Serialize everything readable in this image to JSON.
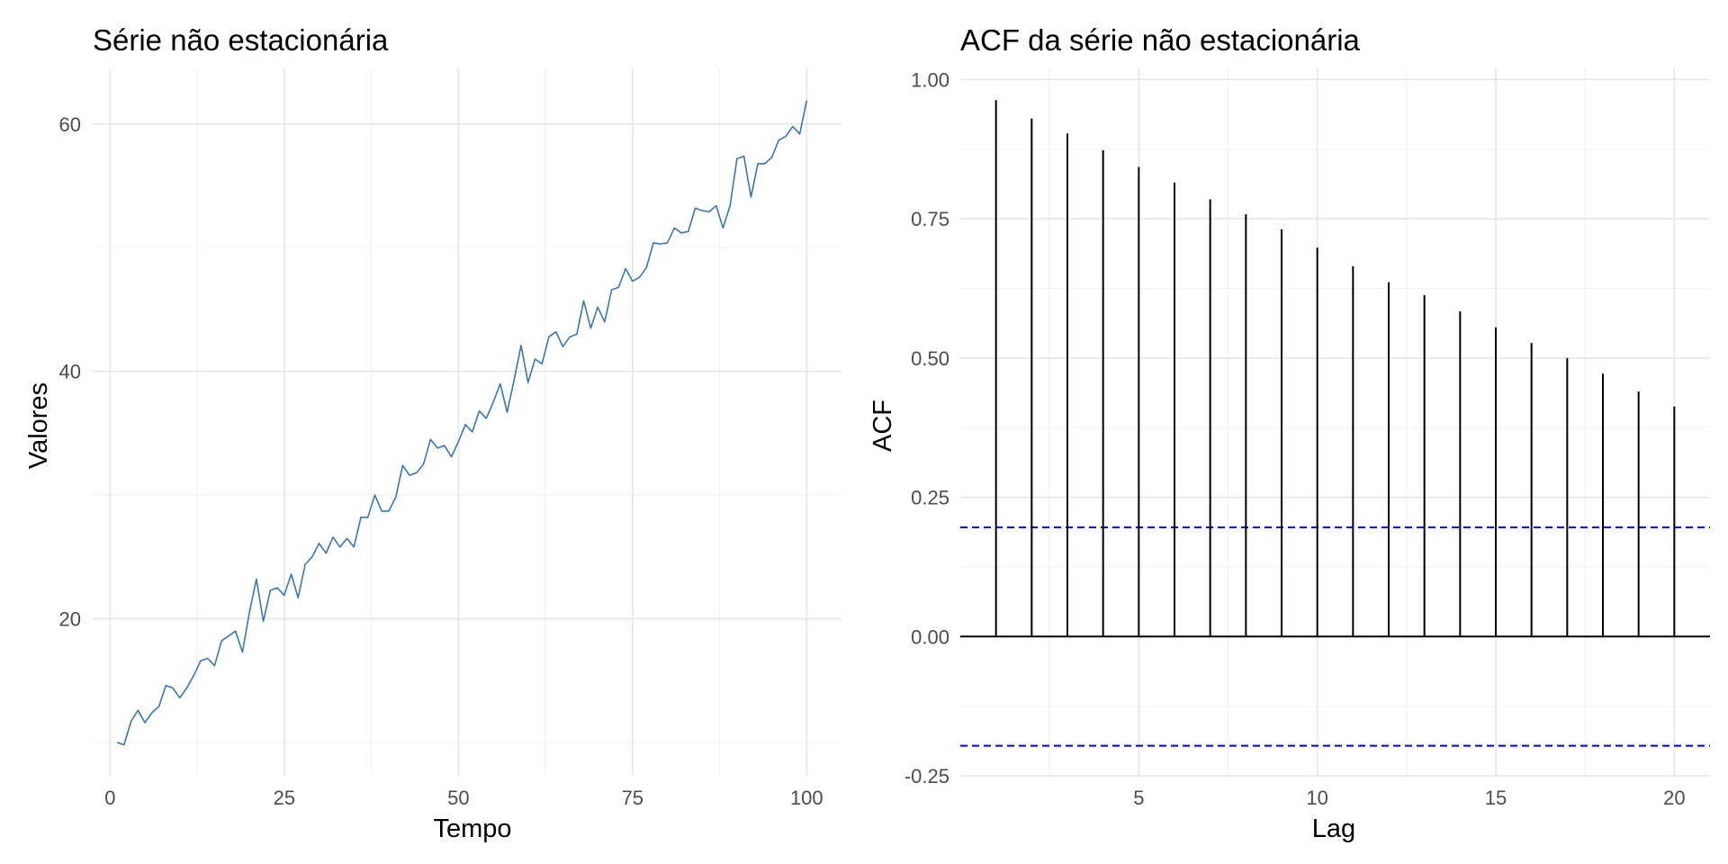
{
  "chart_data": [
    {
      "type": "line",
      "title": "Série não estacionária",
      "xlabel": "Tempo",
      "ylabel": "Valores",
      "xlim": [
        -2.5,
        105
      ],
      "ylim": [
        7.3,
        64.5
      ],
      "xticks": [
        0,
        25,
        50,
        75,
        100
      ],
      "yticks": [
        20,
        40,
        60
      ],
      "line_color": "#3a76b0",
      "grid": true,
      "x": [
        1,
        2,
        3,
        4,
        5,
        6,
        7,
        8,
        9,
        10,
        11,
        12,
        13,
        14,
        15,
        16,
        17,
        18,
        19,
        20,
        21,
        22,
        23,
        24,
        25,
        26,
        27,
        28,
        29,
        30,
        31,
        32,
        33,
        34,
        35,
        36,
        37,
        38,
        39,
        40,
        41,
        42,
        43,
        44,
        45,
        46,
        47,
        48,
        49,
        50,
        51,
        52,
        53,
        54,
        55,
        56,
        57,
        58,
        59,
        60,
        61,
        62,
        63,
        64,
        65,
        66,
        67,
        68,
        69,
        70,
        71,
        72,
        73,
        74,
        75,
        76,
        77,
        78,
        79,
        80,
        81,
        82,
        83,
        84,
        85,
        86,
        87,
        88,
        89,
        90,
        91,
        92,
        93,
        94,
        95,
        96,
        97,
        98,
        99,
        100
      ],
      "y": [
        10.0,
        9.8,
        11.7,
        12.6,
        11.6,
        12.4,
        12.9,
        14.6,
        14.4,
        13.6,
        14.4,
        15.4,
        16.6,
        16.8,
        16.2,
        18.2,
        18.6,
        19.0,
        17.3,
        20.5,
        23.2,
        19.8,
        22.3,
        22.5,
        21.9,
        23.6,
        21.7,
        24.4,
        25.0,
        26.1,
        25.3,
        26.6,
        25.8,
        26.5,
        25.8,
        28.2,
        28.2,
        30.0,
        28.7,
        28.7,
        29.8,
        32.4,
        31.6,
        31.8,
        32.5,
        34.5,
        33.8,
        34.0,
        33.1,
        34.3,
        35.7,
        35.1,
        36.8,
        36.2,
        37.5,
        39.0,
        36.7,
        39.3,
        42.1,
        39.1,
        41.0,
        40.6,
        42.8,
        43.2,
        42.0,
        42.8,
        43.0,
        45.7,
        43.5,
        45.2,
        44.0,
        46.6,
        46.8,
        48.3,
        47.3,
        47.6,
        48.4,
        50.4,
        50.3,
        50.4,
        51.6,
        51.2,
        51.3,
        53.2,
        53.0,
        52.9,
        53.4,
        51.6,
        53.4,
        57.2,
        57.4,
        54.1,
        56.8,
        56.8,
        57.3,
        58.7,
        59.0,
        59.8,
        59.2,
        61.9
      ]
    },
    {
      "type": "bar",
      "title": "ACF da série não estacionária",
      "xlabel": "Lag",
      "ylabel": "ACF",
      "xlim": [
        0.0,
        21.0
      ],
      "ylim": [
        -0.25,
        1.02
      ],
      "xticks": [
        5,
        10,
        15,
        20
      ],
      "yticks": [
        -0.25,
        0.0,
        0.25,
        0.5,
        0.75,
        1.0
      ],
      "ytick_labels": [
        "-0.25",
        "0.00",
        "0.25",
        "0.50",
        "0.75",
        "1.00"
      ],
      "lags": [
        1,
        2,
        3,
        4,
        5,
        6,
        7,
        8,
        9,
        10,
        11,
        12,
        13,
        14,
        15,
        16,
        17,
        18,
        19,
        20
      ],
      "values": [
        0.963,
        0.93,
        0.903,
        0.873,
        0.843,
        0.815,
        0.785,
        0.758,
        0.731,
        0.698,
        0.665,
        0.636,
        0.613,
        0.584,
        0.555,
        0.527,
        0.5,
        0.472,
        0.44,
        0.413
      ],
      "confidence_bound": 0.196,
      "bar_color": "#000000",
      "ci_color": "#0000cc",
      "grid": true
    }
  ]
}
